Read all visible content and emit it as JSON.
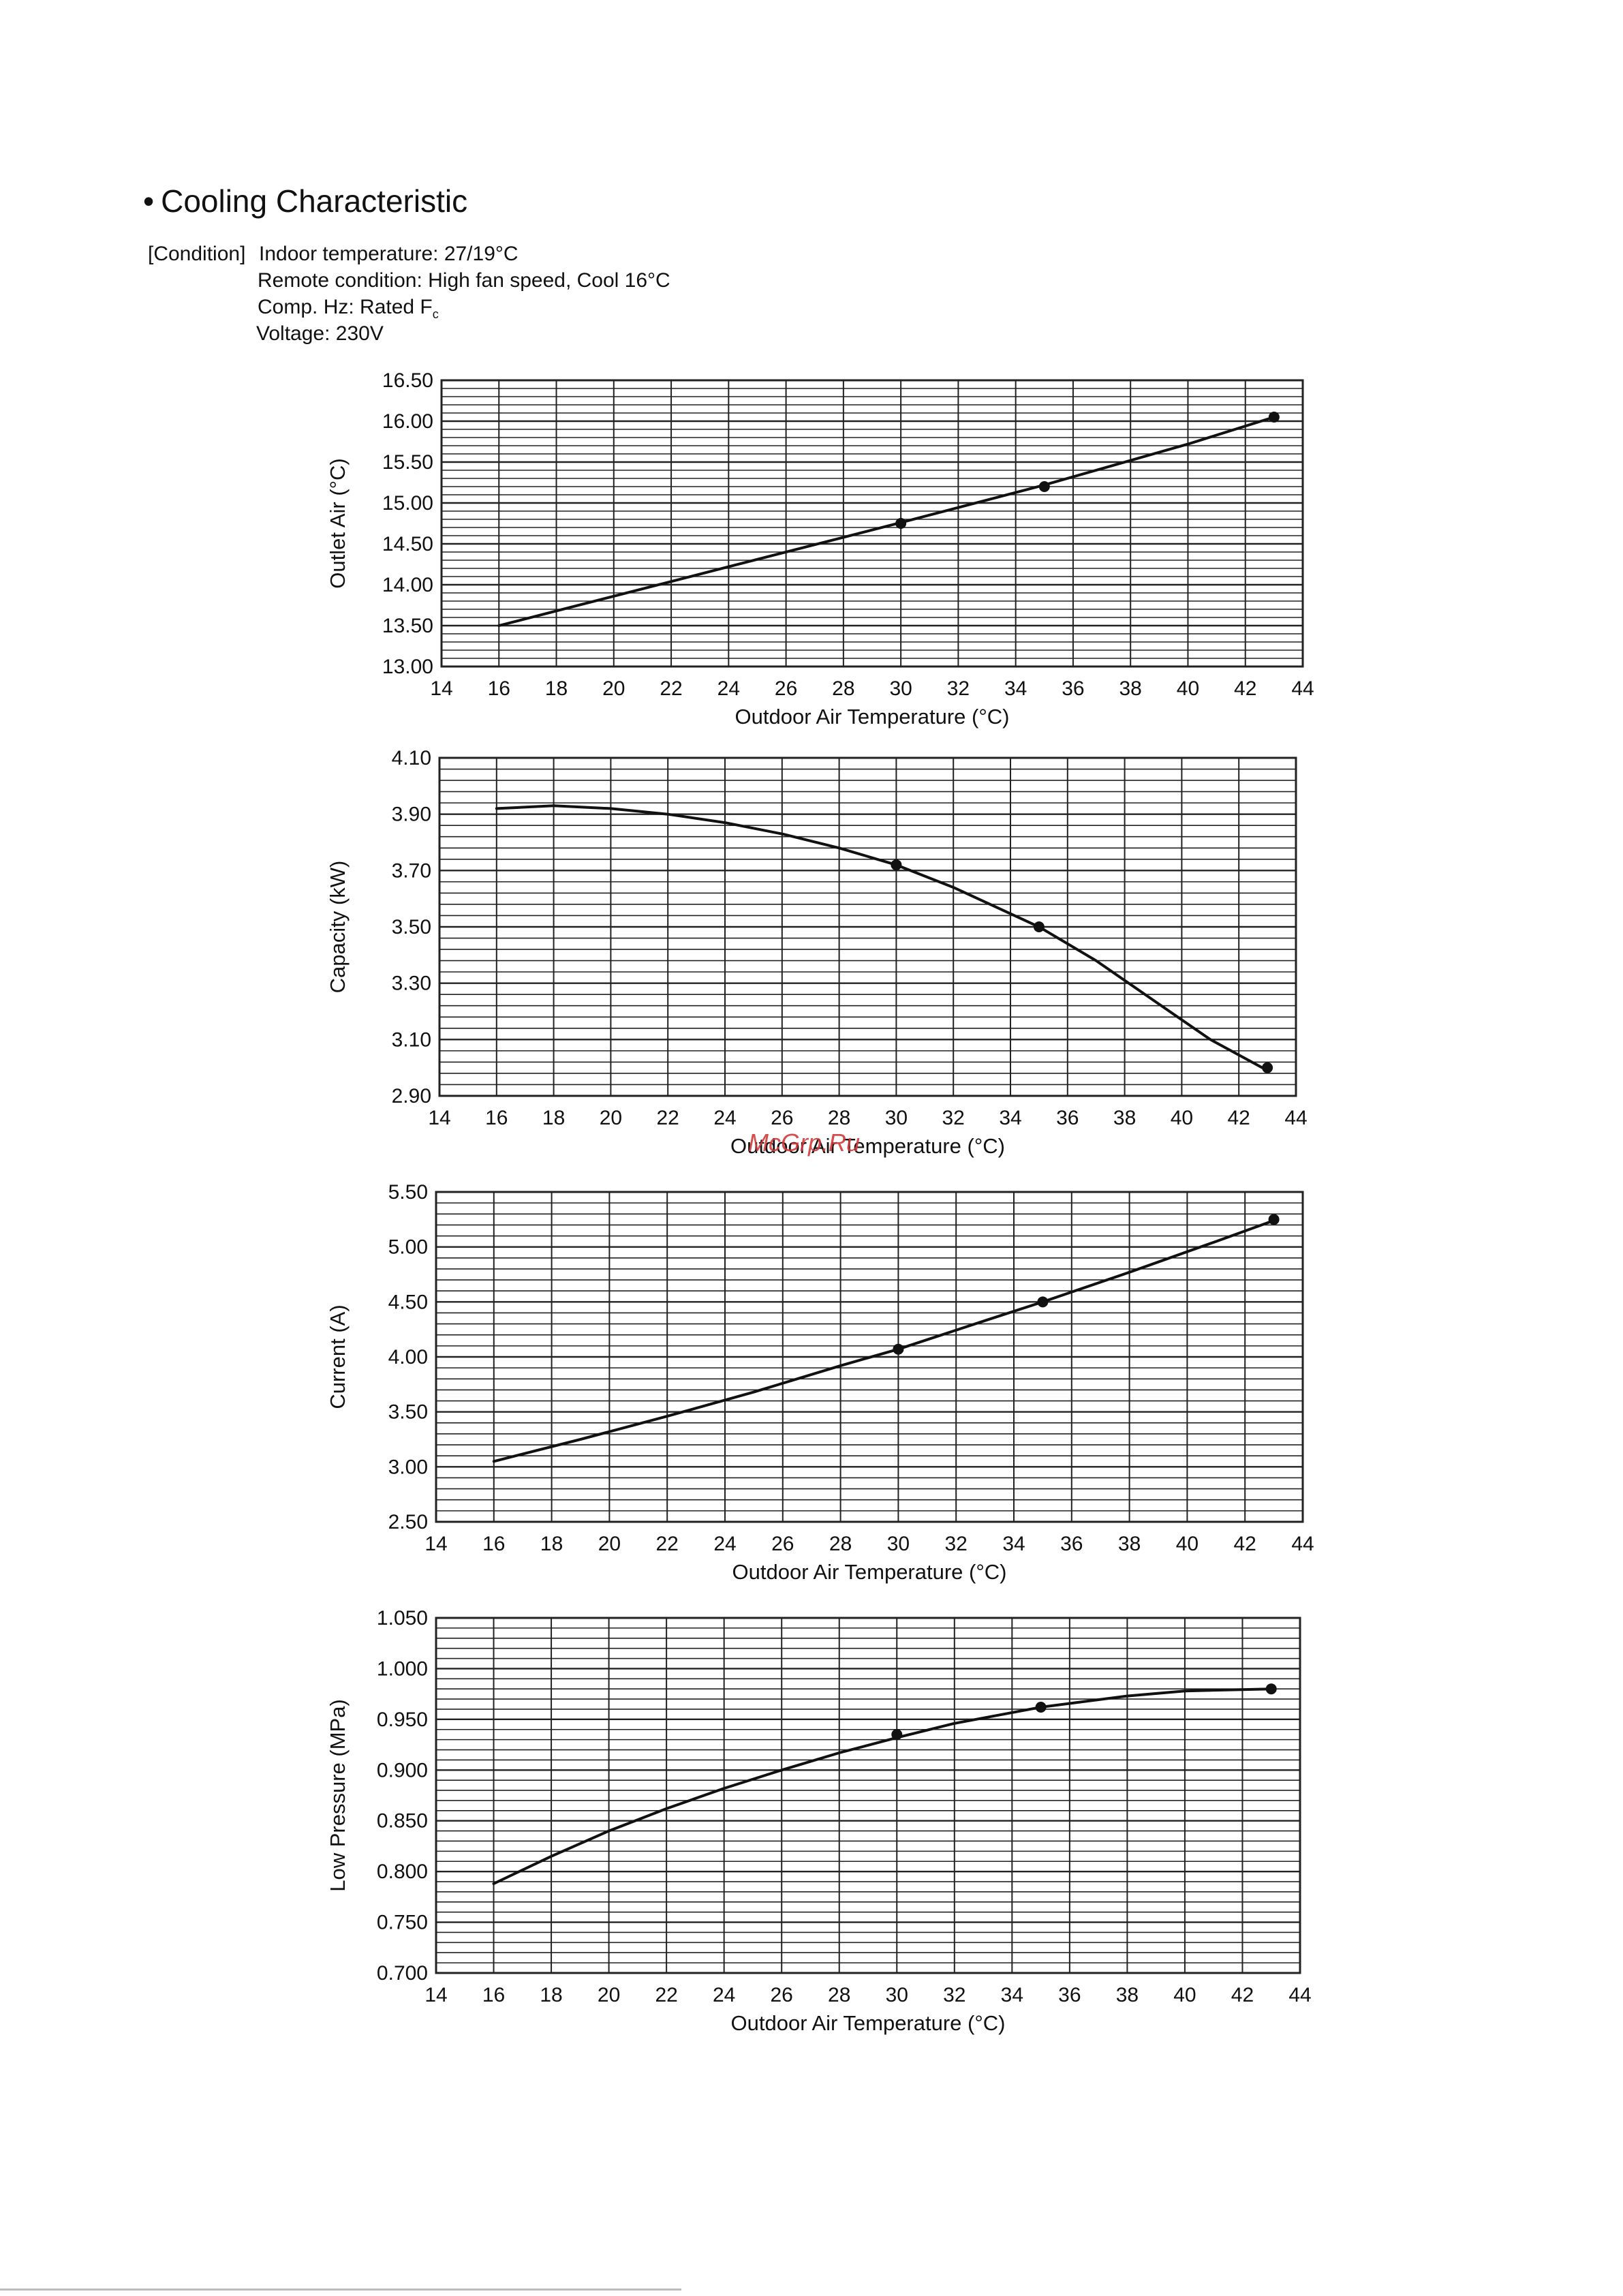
{
  "heading": {
    "bullet": "•",
    "title": "Cooling Characteristic"
  },
  "condition": {
    "label": "[Condition]",
    "indoor": "Indoor temperature: 27/19°C",
    "remote": "Remote condition: High fan speed, Cool 16°C",
    "comp_prefix": "Comp. Hz: Rated F",
    "comp_sub": "c",
    "voltage": "Voltage: 230V"
  },
  "watermark": "McGrp.Ru",
  "colors": {
    "line": "#111111",
    "grid": "#222222",
    "watermark": "#d23a3a"
  },
  "chart_data": [
    {
      "type": "line",
      "title": "",
      "xlabel": "Outdoor  Air Temperature (°C)",
      "ylabel": "Outlet Air (°C)",
      "xlim": [
        14,
        44
      ],
      "ylim": [
        13.0,
        16.5
      ],
      "xticks": [
        "14",
        "16",
        "18",
        "20",
        "22",
        "24",
        "26",
        "28",
        "30",
        "32",
        "34",
        "36",
        "38",
        "40",
        "42",
        "44"
      ],
      "yticks": [
        "13.00",
        "13.50",
        "14.00",
        "14.50",
        "15.00",
        "15.50",
        "16.00",
        "16.50"
      ],
      "minor_divisions": 5,
      "grid": true,
      "points": [
        {
          "x": 30,
          "y": 14.75
        },
        {
          "x": 35,
          "y": 15.2
        },
        {
          "x": 43,
          "y": 16.05
        }
      ],
      "curve": [
        [
          16,
          13.5
        ],
        [
          20,
          13.86
        ],
        [
          24,
          14.22
        ],
        [
          28,
          14.58
        ],
        [
          30,
          14.76
        ],
        [
          35,
          15.22
        ],
        [
          40,
          15.72
        ],
        [
          43,
          16.05
        ]
      ]
    },
    {
      "type": "line",
      "title": "",
      "xlabel": "Outdoor  Air Temperature (°C)",
      "ylabel": "Capacity (kW)",
      "xlim": [
        14,
        44
      ],
      "ylim": [
        2.9,
        4.1
      ],
      "xticks": [
        "14",
        "16",
        "18",
        "20",
        "22",
        "24",
        "26",
        "28",
        "30",
        "32",
        "34",
        "36",
        "38",
        "40",
        "42",
        "44"
      ],
      "yticks": [
        "2.90",
        "3.10",
        "3.30",
        "3.50",
        "3.70",
        "3.90",
        "4.10"
      ],
      "minor_divisions": 5,
      "grid": true,
      "points": [
        {
          "x": 30,
          "y": 3.72
        },
        {
          "x": 35,
          "y": 3.5
        },
        {
          "x": 43,
          "y": 3.0
        }
      ],
      "curve": [
        [
          16,
          3.92
        ],
        [
          18,
          3.93
        ],
        [
          20,
          3.92
        ],
        [
          22,
          3.9
        ],
        [
          24,
          3.87
        ],
        [
          26,
          3.83
        ],
        [
          28,
          3.78
        ],
        [
          30,
          3.72
        ],
        [
          32,
          3.64
        ],
        [
          35,
          3.5
        ],
        [
          37,
          3.38
        ],
        [
          39,
          3.24
        ],
        [
          41,
          3.1
        ],
        [
          43,
          2.99
        ]
      ]
    },
    {
      "type": "line",
      "title": "",
      "xlabel": "Outdoor  Air Temperature (°C)",
      "ylabel": "Current (A)",
      "xlim": [
        14,
        44
      ],
      "ylim": [
        2.5,
        5.5
      ],
      "xticks": [
        "14",
        "16",
        "18",
        "20",
        "22",
        "24",
        "26",
        "28",
        "30",
        "32",
        "34",
        "36",
        "38",
        "40",
        "42",
        "44"
      ],
      "yticks": [
        "2.50",
        "3.00",
        "3.50",
        "4.00",
        "4.50",
        "5.00",
        "5.50"
      ],
      "minor_divisions": 5,
      "grid": true,
      "points": [
        {
          "x": 30,
          "y": 4.07
        },
        {
          "x": 35,
          "y": 4.5
        },
        {
          "x": 43,
          "y": 5.25
        }
      ],
      "curve": [
        [
          16,
          3.05
        ],
        [
          19,
          3.25
        ],
        [
          22,
          3.46
        ],
        [
          25,
          3.68
        ],
        [
          28,
          3.92
        ],
        [
          30,
          4.07
        ],
        [
          33,
          4.33
        ],
        [
          35,
          4.5
        ],
        [
          38,
          4.77
        ],
        [
          41,
          5.05
        ],
        [
          43,
          5.24
        ]
      ]
    },
    {
      "type": "line",
      "title": "",
      "xlabel": "Outdoor  Air Temperature (°C)",
      "ylabel": "Low Pressure (MPa)",
      "xlim": [
        14,
        44
      ],
      "ylim": [
        0.7,
        1.05
      ],
      "xticks": [
        "14",
        "16",
        "18",
        "20",
        "22",
        "24",
        "26",
        "28",
        "30",
        "32",
        "34",
        "36",
        "38",
        "40",
        "42",
        "44"
      ],
      "yticks": [
        "0.700",
        "0.750",
        "0.800",
        "0.850",
        "0.900",
        "0.950",
        "1.000",
        "1.050"
      ],
      "minor_divisions": 5,
      "grid": true,
      "points": [
        {
          "x": 30,
          "y": 0.935
        },
        {
          "x": 35,
          "y": 0.962
        },
        {
          "x": 43,
          "y": 0.98
        }
      ],
      "curve": [
        [
          16,
          0.788
        ],
        [
          18,
          0.815
        ],
        [
          20,
          0.84
        ],
        [
          22,
          0.862
        ],
        [
          24,
          0.882
        ],
        [
          26,
          0.9
        ],
        [
          28,
          0.917
        ],
        [
          30,
          0.932
        ],
        [
          32,
          0.946
        ],
        [
          35,
          0.962
        ],
        [
          38,
          0.973
        ],
        [
          40,
          0.978
        ],
        [
          43,
          0.98
        ]
      ]
    }
  ]
}
